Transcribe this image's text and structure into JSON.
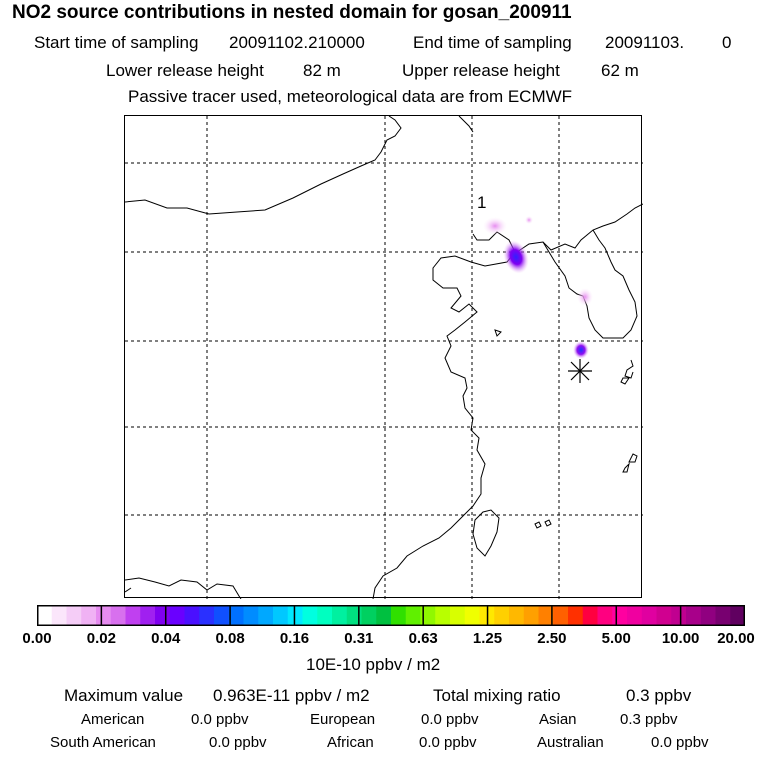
{
  "header": {
    "title": "NO2 source contributions in nested domain for gosan_200911",
    "start_label": "Start time of sampling",
    "start_value": "20091102.210000",
    "end_label": "End time of sampling",
    "end_value": "20091103.",
    "end_hour": "0",
    "lower_label": "Lower release height",
    "lower_value": "82 m",
    "upper_label": "Upper release height",
    "upper_value": "62 m",
    "note": "Passive tracer used, meteorological data are from ECMWF"
  },
  "map": {
    "marker_label": "1",
    "receptor_symbol": "asterisk"
  },
  "colorbar": {
    "ticks": [
      "0.00",
      "0.02",
      "0.04",
      "0.08",
      "0.16",
      "0.31",
      "0.63",
      "1.25",
      "2.50",
      "5.00",
      "10.00",
      "20.00"
    ],
    "unit": "10E-10 ppbv / m2",
    "colors": [
      "#ffffff",
      "#fbe6fb",
      "#f5cdf7",
      "#f0b2f4",
      "#e68cf0",
      "#d870ee",
      "#c040f0",
      "#a020f0",
      "#8000f0",
      "#6a00ff",
      "#4a10ff",
      "#2a30ff",
      "#1050ff",
      "#0070ff",
      "#008cff",
      "#00a8ff",
      "#00c8ff",
      "#00e8ff",
      "#00ffe0",
      "#00ffc0",
      "#00f0a0",
      "#00e080",
      "#00d060",
      "#00c040",
      "#30e000",
      "#60f000",
      "#90f800",
      "#b8ff00",
      "#d8ff00",
      "#f0ff00",
      "#ffe800",
      "#ffd000",
      "#ffb800",
      "#ffa000",
      "#ff8000",
      "#ff6000",
      "#ff3000",
      "#ff0040",
      "#ff0080",
      "#ff00a0",
      "#f000a0",
      "#e000a0",
      "#d00090",
      "#c00090",
      "#a8008a",
      "#900080",
      "#780070",
      "#600060"
    ]
  },
  "summary": {
    "max_label": "Maximum value",
    "max_value": "0.963E-11 ppbv / m2",
    "total_label": "Total mixing ratio",
    "total_value": "0.3 ppbv",
    "regions": [
      {
        "name": "American",
        "value": "0.0 ppbv"
      },
      {
        "name": "European",
        "value": "0.0 ppbv"
      },
      {
        "name": "Asian",
        "value": "0.3 ppbv"
      },
      {
        "name": "South American",
        "value": "0.0 ppbv"
      },
      {
        "name": "African",
        "value": "0.0 ppbv"
      },
      {
        "name": "Australian",
        "value": "0.0 ppbv"
      }
    ]
  }
}
